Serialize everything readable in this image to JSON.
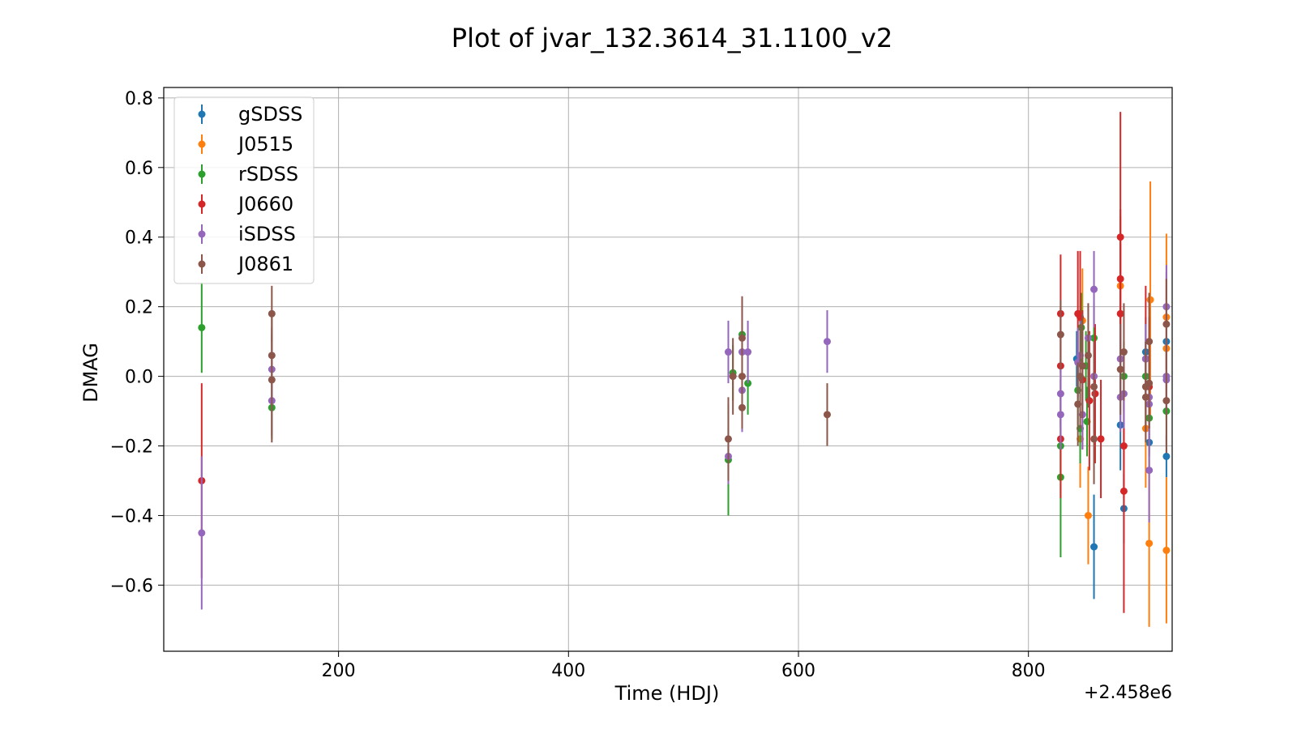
{
  "chart_data": {
    "type": "scatter",
    "title": "Plot of jvar_132.3614_31.1100_v2",
    "xlabel": "Time (HDJ)",
    "ylabel": "DMAG",
    "x_offset_label": "+2.458e6",
    "xlim": [
      48,
      925
    ],
    "ylim": [
      -0.79,
      0.83
    ],
    "xticks": [
      200,
      400,
      600,
      800
    ],
    "xtick_labels": [
      "200",
      "400",
      "600",
      "800"
    ],
    "yticks": [
      0.8,
      0.6,
      0.4,
      0.2,
      0.0,
      -0.2,
      -0.4,
      -0.6
    ],
    "ytick_labels": [
      "0.8",
      "0.6",
      "0.4",
      "0.2",
      "0.0",
      "−0.2",
      "−0.4",
      "−0.6"
    ],
    "grid": true,
    "legend_position": "top-left",
    "series": [
      {
        "name": "gSDSS",
        "color": "#1f77b4",
        "points": [
          {
            "x": 842,
            "y": 0.05,
            "err": 0.08
          },
          {
            "x": 857,
            "y": -0.49,
            "err": 0.15
          },
          {
            "x": 880,
            "y": -0.14,
            "err": 0.13
          },
          {
            "x": 883,
            "y": -0.38,
            "err": 0.1
          },
          {
            "x": 902,
            "y": 0.07,
            "err": 0.1
          },
          {
            "x": 905,
            "y": -0.19,
            "err": 0.08
          },
          {
            "x": 920,
            "y": 0.1,
            "err": 0.2
          },
          {
            "x": 920,
            "y": -0.23,
            "err": 0.06
          }
        ]
      },
      {
        "name": "J0515",
        "color": "#ff7f0e",
        "points": [
          {
            "x": 845,
            "y": -0.18,
            "err": 0.14
          },
          {
            "x": 847,
            "y": 0.16,
            "err": 0.15
          },
          {
            "x": 852,
            "y": -0.4,
            "err": 0.14
          },
          {
            "x": 880,
            "y": 0.26,
            "err": 0.2
          },
          {
            "x": 902,
            "y": -0.15,
            "err": 0.17
          },
          {
            "x": 905,
            "y": -0.48,
            "err": 0.24
          },
          {
            "x": 906,
            "y": 0.22,
            "err": 0.34
          },
          {
            "x": 920,
            "y": 0.17,
            "err": 0.24
          },
          {
            "x": 920,
            "y": 0.08,
            "err": 0.2
          },
          {
            "x": 920,
            "y": -0.5,
            "err": 0.21
          }
        ]
      },
      {
        "name": "rSDSS",
        "color": "#2ca02c",
        "points": [
          {
            "x": 81,
            "y": 0.14,
            "err": 0.13
          },
          {
            "x": 142,
            "y": -0.09,
            "err": 0.09
          },
          {
            "x": 539,
            "y": -0.24,
            "err": 0.16
          },
          {
            "x": 543,
            "y": 0.01,
            "err": 0.08
          },
          {
            "x": 551,
            "y": 0.12,
            "err": 0.1
          },
          {
            "x": 556,
            "y": -0.02,
            "err": 0.09
          },
          {
            "x": 828,
            "y": -0.2,
            "err": 0.1
          },
          {
            "x": 828,
            "y": -0.29,
            "err": 0.23
          },
          {
            "x": 843,
            "y": -0.04,
            "err": 0.1
          },
          {
            "x": 845,
            "y": -0.15,
            "err": 0.1
          },
          {
            "x": 846,
            "y": 0.14,
            "err": 0.1
          },
          {
            "x": 850,
            "y": 0.03,
            "err": 0.1
          },
          {
            "x": 851,
            "y": -0.13,
            "err": 0.1
          },
          {
            "x": 857,
            "y": 0.11,
            "err": 0.1
          },
          {
            "x": 883,
            "y": 0.0,
            "err": 0.1
          },
          {
            "x": 902,
            "y": 0.0,
            "err": 0.1
          },
          {
            "x": 905,
            "y": -0.12,
            "err": 0.1
          },
          {
            "x": 920,
            "y": -0.1,
            "err": 0.1
          }
        ]
      },
      {
        "name": "J0660",
        "color": "#d62728",
        "points": [
          {
            "x": 81,
            "y": -0.3,
            "err": 0.28
          },
          {
            "x": 828,
            "y": 0.18,
            "err": 0.17
          },
          {
            "x": 828,
            "y": 0.03,
            "err": 0.17
          },
          {
            "x": 828,
            "y": -0.18,
            "err": 0.17
          },
          {
            "x": 843,
            "y": 0.18,
            "err": 0.18
          },
          {
            "x": 845,
            "y": 0.17,
            "err": 0.19
          },
          {
            "x": 847,
            "y": -0.01,
            "err": 0.2
          },
          {
            "x": 853,
            "y": -0.07,
            "err": 0.2
          },
          {
            "x": 858,
            "y": -0.05,
            "err": 0.2
          },
          {
            "x": 863,
            "y": -0.18,
            "err": 0.17
          },
          {
            "x": 880,
            "y": 0.4,
            "err": 0.36
          },
          {
            "x": 880,
            "y": 0.28,
            "err": 0.2
          },
          {
            "x": 880,
            "y": 0.18,
            "err": 0.2
          },
          {
            "x": 883,
            "y": -0.2,
            "err": 0.15
          },
          {
            "x": 883,
            "y": -0.33,
            "err": 0.35
          },
          {
            "x": 902,
            "y": 0.05,
            "err": 0.21
          },
          {
            "x": 905,
            "y": -0.03,
            "err": 0.2
          }
        ]
      },
      {
        "name": "iSDSS",
        "color": "#9467bd",
        "points": [
          {
            "x": 81,
            "y": -0.45,
            "err": 0.22
          },
          {
            "x": 142,
            "y": 0.02,
            "err": 0.1
          },
          {
            "x": 142,
            "y": -0.07,
            "err": 0.1
          },
          {
            "x": 539,
            "y": 0.07,
            "err": 0.09
          },
          {
            "x": 539,
            "y": -0.23,
            "err": 0.08
          },
          {
            "x": 551,
            "y": 0.07,
            "err": 0.12
          },
          {
            "x": 551,
            "y": -0.04,
            "err": 0.12
          },
          {
            "x": 556,
            "y": 0.07,
            "err": 0.09
          },
          {
            "x": 625,
            "y": 0.1,
            "err": 0.09
          },
          {
            "x": 828,
            "y": -0.05,
            "err": 0.1
          },
          {
            "x": 828,
            "y": -0.11,
            "err": 0.1
          },
          {
            "x": 843,
            "y": 0.04,
            "err": 0.1
          },
          {
            "x": 845,
            "y": 0.06,
            "err": 0.1
          },
          {
            "x": 847,
            "y": -0.11,
            "err": 0.1
          },
          {
            "x": 852,
            "y": 0.11,
            "err": 0.1
          },
          {
            "x": 857,
            "y": 0.25,
            "err": 0.11
          },
          {
            "x": 857,
            "y": 0.0,
            "err": 0.1
          },
          {
            "x": 880,
            "y": -0.06,
            "err": 0.1
          },
          {
            "x": 880,
            "y": 0.05,
            "err": 0.1
          },
          {
            "x": 883,
            "y": -0.05,
            "err": 0.1
          },
          {
            "x": 902,
            "y": 0.05,
            "err": 0.1
          },
          {
            "x": 905,
            "y": -0.08,
            "err": 0.1
          },
          {
            "x": 905,
            "y": -0.06,
            "err": 0.1
          },
          {
            "x": 905,
            "y": -0.27,
            "err": 0.15
          },
          {
            "x": 920,
            "y": 0.2,
            "err": 0.12
          },
          {
            "x": 920,
            "y": 0.0,
            "err": 0.1
          },
          {
            "x": 920,
            "y": -0.01,
            "err": 0.1
          }
        ]
      },
      {
        "name": "J0861",
        "color": "#8c564b",
        "points": [
          {
            "x": 142,
            "y": 0.18,
            "err": 0.08
          },
          {
            "x": 142,
            "y": 0.06,
            "err": 0.08
          },
          {
            "x": 142,
            "y": -0.01,
            "err": 0.18
          },
          {
            "x": 539,
            "y": -0.18,
            "err": 0.12
          },
          {
            "x": 543,
            "y": 0.0,
            "err": 0.11
          },
          {
            "x": 551,
            "y": 0.0,
            "err": 0.12
          },
          {
            "x": 551,
            "y": -0.09,
            "err": 0.06
          },
          {
            "x": 551,
            "y": 0.11,
            "err": 0.12
          },
          {
            "x": 625,
            "y": -0.11,
            "err": 0.09
          },
          {
            "x": 828,
            "y": 0.12,
            "err": 0.1
          },
          {
            "x": 843,
            "y": -0.08,
            "err": 0.12
          },
          {
            "x": 845,
            "y": 0.0,
            "err": 0.15
          },
          {
            "x": 847,
            "y": 0.03,
            "err": 0.15
          },
          {
            "x": 852,
            "y": 0.06,
            "err": 0.15
          },
          {
            "x": 857,
            "y": -0.18,
            "err": 0.13
          },
          {
            "x": 857,
            "y": -0.03,
            "err": 0.13
          },
          {
            "x": 880,
            "y": 0.02,
            "err": 0.13
          },
          {
            "x": 883,
            "y": 0.07,
            "err": 0.14
          },
          {
            "x": 902,
            "y": -0.03,
            "err": 0.13
          },
          {
            "x": 902,
            "y": -0.06,
            "err": 0.13
          },
          {
            "x": 905,
            "y": 0.1,
            "err": 0.14
          },
          {
            "x": 905,
            "y": -0.02,
            "err": 0.13
          },
          {
            "x": 920,
            "y": 0.15,
            "err": 0.13
          },
          {
            "x": 920,
            "y": -0.07,
            "err": 0.15
          }
        ]
      }
    ]
  }
}
